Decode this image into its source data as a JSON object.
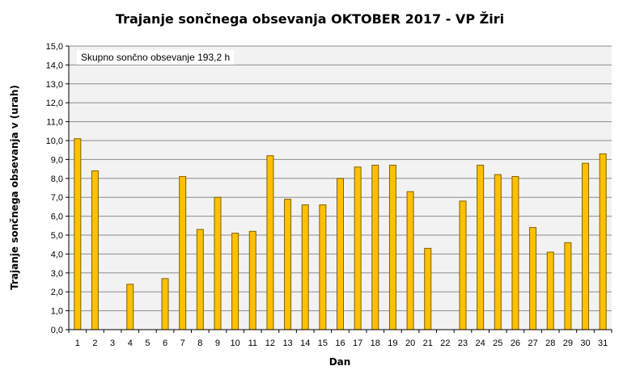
{
  "chart_data": {
    "type": "bar",
    "title": "Trajanje  sončnega  obsevanja  OKTOBER  2017 - VP Žiri",
    "xlabel": "Dan",
    "ylabel": "Trajanje  sončnega obsevanja  v (urah)",
    "annotation": "Skupno sončno obsevanje  193,2 h",
    "ylim": [
      0,
      15
    ],
    "ytick_step": 1,
    "ytick_labels": [
      "0,0",
      "1,0",
      "2,0",
      "3,0",
      "4,0",
      "5,0",
      "6,0",
      "7,0",
      "8,0",
      "9,0",
      "10,0",
      "11,0",
      "12,0",
      "13,0",
      "14,0",
      "15,0"
    ],
    "grid": true,
    "legend": "none",
    "categories": [
      "1",
      "2",
      "3",
      "4",
      "5",
      "6",
      "7",
      "8",
      "9",
      "10",
      "11",
      "12",
      "13",
      "14",
      "15",
      "16",
      "17",
      "18",
      "19",
      "20",
      "21",
      "22",
      "23",
      "24",
      "25",
      "26",
      "27",
      "28",
      "29",
      "30",
      "31"
    ],
    "values": [
      10.1,
      8.4,
      0,
      2.4,
      0,
      2.7,
      8.1,
      5.3,
      7.0,
      5.1,
      5.2,
      9.2,
      6.9,
      6.6,
      6.6,
      8.0,
      8.6,
      8.7,
      8.7,
      7.3,
      4.3,
      0,
      6.8,
      8.7,
      8.2,
      8.1,
      5.4,
      4.1,
      4.6,
      8.8,
      9.3
    ],
    "colors": {
      "bar_fill": "#FFC000",
      "bar_stroke": "#7F6000",
      "plot_background": "#F2F2F2",
      "gridline": "#8C8C8C",
      "annotation_background": "#FFFFFF"
    }
  }
}
